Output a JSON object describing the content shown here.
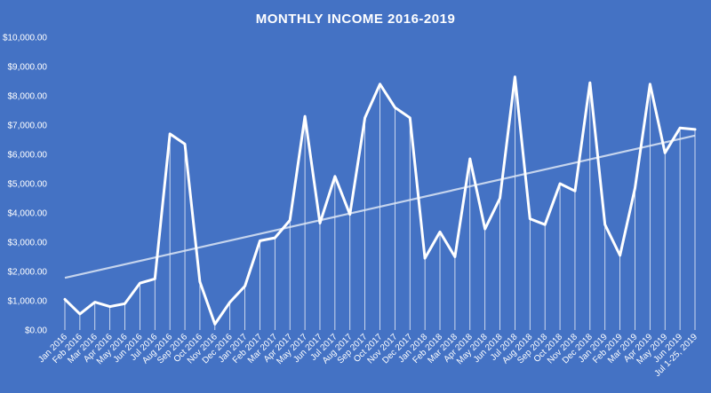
{
  "colors": {
    "background": "#4472C4",
    "line": "#FFFFFF",
    "trendline": "#DCE6F5",
    "text": "#FFFFFF"
  },
  "chart_data": {
    "type": "line",
    "title": "MONTHLY INCOME 2016-2019",
    "xlabel": "",
    "ylabel": "",
    "ylim": [
      0,
      10000
    ],
    "yticks": [
      0,
      1000,
      2000,
      3000,
      4000,
      5000,
      6000,
      7000,
      8000,
      9000,
      10000
    ],
    "ytick_labels": [
      "$0.00",
      "$1,000.00",
      "$2,000.00",
      "$3,000.00",
      "$4,000.00",
      "$5,000.00",
      "$6,000.00",
      "$7,000.00",
      "$8,000.00",
      "$9,000.00",
      "$10,000.00"
    ],
    "grid": false,
    "drop_lines": true,
    "trendline": "linear",
    "categories": [
      "Jan 2016",
      "Feb 2016",
      "Mar 2016",
      "Apr 2016",
      "May 2016",
      "Jun 2016",
      "Jul 2016",
      "Aug 2016",
      "Sep 2016",
      "Oct 2016",
      "Nov 2016",
      "Dec 2016",
      "Jan 2017",
      "Feb 2017",
      "Mar 2017",
      "Apr 2017",
      "May 2017",
      "Jun 2017",
      "Jul 2017",
      "Aug 2017",
      "Sep 2017",
      "Oct 2017",
      "Nov 2017",
      "Dec 2017",
      "Jan 2018",
      "Feb 2018",
      "Mar 2018",
      "Apr 2018",
      "May 2018",
      "Jun 2018",
      "Jul 2018",
      "Aug 2018",
      "Sep 2018",
      "Oct 2018",
      "Nov 2018",
      "Dec 2018",
      "Jan 2019",
      "Feb 2019",
      "Mar 2019",
      "Apr 2019",
      "May 2019",
      "Jun 2019",
      "Jul 1-25, 2019"
    ],
    "series": [
      {
        "values": [
          1050,
          550,
          950,
          800,
          900,
          1600,
          1750,
          6700,
          6350,
          1650,
          200,
          950,
          1500,
          3050,
          3150,
          3750,
          7300,
          3650,
          5250,
          3950,
          7250,
          8400,
          7600,
          7250,
          2450,
          3350,
          2500,
          5850,
          3450,
          4500,
          8650,
          3800,
          3600,
          5000,
          4750,
          8450,
          3600,
          2550,
          4850,
          8400,
          6050,
          6900,
          6850
        ]
      }
    ]
  }
}
